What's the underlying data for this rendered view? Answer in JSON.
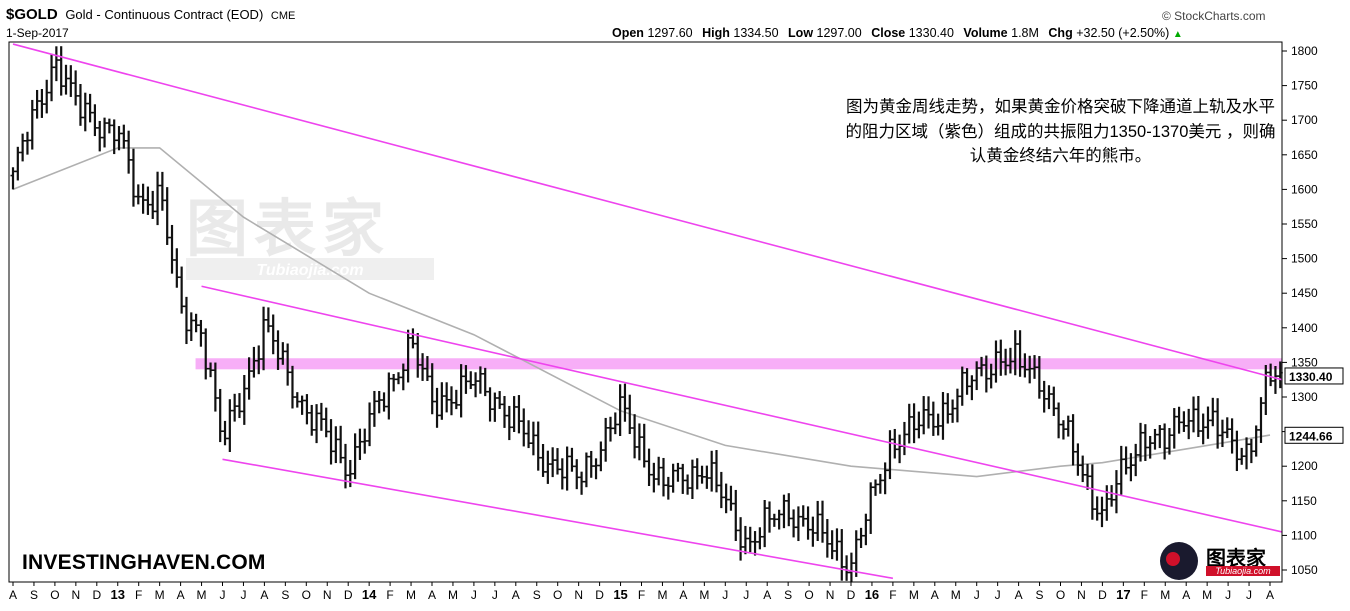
{
  "header": {
    "symbol": "$GOLD",
    "title": "Gold - Continuous Contract (EOD)",
    "exchange": "CME",
    "date": "1-Sep-2017",
    "source": "© StockCharts.com",
    "open_label": "Open",
    "open": "1297.60",
    "high_label": "High",
    "high": "1334.50",
    "low_label": "Low",
    "low": "1297.00",
    "close_label": "Close",
    "close": "1330.40",
    "volume_label": "Volume",
    "volume": "1.8M",
    "chg_label": "Chg",
    "chg": "+32.50 (+2.50%)",
    "chg_marker": "▲"
  },
  "annotation": "图为黄金周线走势，如果黄金价格突破下降通道上轨及水平的阻力区域（紫色）组成的共振阻力1350-1370美元 ，则确认黄金终结六年的熊市。",
  "brand": "INVESTINGHAVEN.COM",
  "watermark": {
    "main": "图表家",
    "sub": "Tubiaojia.com"
  },
  "colors": {
    "price": "#111111",
    "ma": "#b0b0b0",
    "channel": "#ee44ee",
    "zone": "#f6a0f6"
  },
  "chart_data": {
    "type": "ohlc",
    "period": "weekly",
    "ylim": [
      1030,
      1810
    ],
    "y_ticks": [
      1050,
      1100,
      1150,
      1200,
      1250,
      1300,
      1350,
      1400,
      1450,
      1500,
      1550,
      1600,
      1650,
      1700,
      1750,
      1800
    ],
    "x_start": "2012-08",
    "x_months": [
      "A",
      "S",
      "O",
      "N",
      "D",
      "13",
      "F",
      "M",
      "A",
      "M",
      "J",
      "J",
      "A",
      "S",
      "O",
      "N",
      "D",
      "14",
      "F",
      "M",
      "A",
      "M",
      "J",
      "J",
      "A",
      "S",
      "O",
      "N",
      "D",
      "15",
      "F",
      "M",
      "A",
      "M",
      "J",
      "J",
      "A",
      "S",
      "O",
      "N",
      "D",
      "16",
      "F",
      "M",
      "A",
      "M",
      "J",
      "J",
      "A",
      "S",
      "O",
      "N",
      "D",
      "17",
      "F",
      "M",
      "A",
      "M",
      "J",
      "J",
      "A"
    ],
    "last_close_label": "1330.40",
    "ma_label": "1244.66",
    "price_path": [
      [
        "2012-08",
        1620
      ],
      [
        "2012-10",
        1790
      ],
      [
        "2012-11",
        1720
      ],
      [
        "2013-01",
        1680
      ],
      [
        "2013-02",
        1580
      ],
      [
        "2013-03",
        1600
      ],
      [
        "2013-04",
        1420
      ],
      [
        "2013-05",
        1400
      ],
      [
        "2013-06",
        1230
      ],
      [
        "2013-08",
        1400
      ],
      [
        "2013-10",
        1280
      ],
      [
        "2013-12",
        1200
      ],
      [
        "2014-01",
        1260
      ],
      [
        "2014-03",
        1380
      ],
      [
        "2014-04",
        1290
      ],
      [
        "2014-06",
        1320
      ],
      [
        "2014-07",
        1300
      ],
      [
        "2014-09",
        1220
      ],
      [
        "2014-11",
        1180
      ],
      [
        "2015-01",
        1280
      ],
      [
        "2015-03",
        1170
      ],
      [
        "2015-05",
        1200
      ],
      [
        "2015-07",
        1090
      ],
      [
        "2015-09",
        1140
      ],
      [
        "2015-12",
        1060
      ],
      [
        "2016-02",
        1240
      ],
      [
        "2016-04",
        1270
      ],
      [
        "2016-07",
        1360
      ],
      [
        "2016-09",
        1330
      ],
      [
        "2016-10",
        1260
      ],
      [
        "2016-12",
        1130
      ],
      [
        "2017-02",
        1250
      ],
      [
        "2017-03",
        1230
      ],
      [
        "2017-04",
        1280
      ],
      [
        "2017-07",
        1220
      ],
      [
        "2017-08",
        1330
      ]
    ],
    "moving_average": [
      [
        "2012-08",
        1600
      ],
      [
        "2013-01",
        1660
      ],
      [
        "2013-03",
        1660
      ],
      [
        "2013-07",
        1560
      ],
      [
        "2014-01",
        1450
      ],
      [
        "2014-06",
        1390
      ],
      [
        "2015-01",
        1280
      ],
      [
        "2015-06",
        1230
      ],
      [
        "2015-12",
        1200
      ],
      [
        "2016-06",
        1185
      ],
      [
        "2016-10",
        1200
      ],
      [
        "2016-12",
        1205
      ],
      [
        "2017-04",
        1225
      ],
      [
        "2017-08",
        1245
      ]
    ],
    "channel_lines": [
      {
        "name": "upper",
        "from": [
          "2012-08",
          1810
        ],
        "to": [
          "2017-09",
          1325
        ]
      },
      {
        "name": "middle",
        "from": [
          "2013-05",
          1460
        ],
        "to": [
          "2017-09",
          1105
        ]
      },
      {
        "name": "lower",
        "from": [
          "2013-06",
          1210
        ],
        "to": [
          "2016-02",
          1038
        ]
      }
    ],
    "resistance_zone": {
      "low": 1340,
      "high": 1356,
      "from": "2013-05",
      "to": "2017-09"
    }
  }
}
